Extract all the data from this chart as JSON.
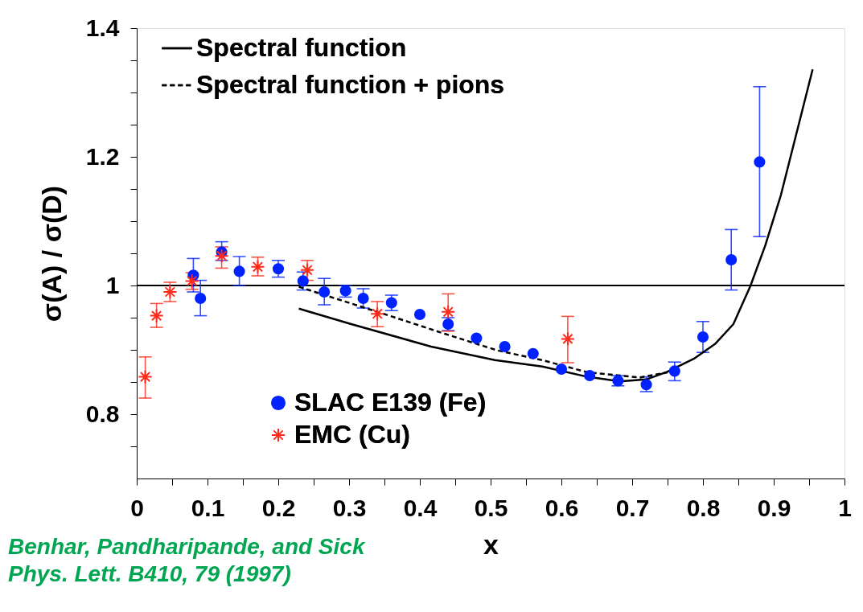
{
  "chart_data": {
    "type": "scatter",
    "xlabel": "x",
    "ylabel": "σ(A) / σ(D)",
    "xlim": [
      0,
      1
    ],
    "ylim": [
      0.7,
      1.4
    ],
    "xticks": [
      0,
      {
        "value": 0.05,
        "label": null
      },
      0.1,
      {
        "value": 0.15,
        "label": null
      },
      0.2,
      {
        "value": 0.25,
        "label": null
      },
      0.3,
      {
        "value": 0.35,
        "label": null
      },
      0.4,
      {
        "value": 0.45,
        "label": null
      },
      0.5,
      {
        "value": 0.55,
        "label": null
      },
      0.6,
      {
        "value": 0.65,
        "label": null
      },
      0.7,
      {
        "value": 0.75,
        "label": null
      },
      0.8,
      {
        "value": 0.85,
        "label": null
      },
      0.9,
      {
        "value": 0.95,
        "label": null
      },
      1
    ],
    "yticks": [
      {
        "value": 0.75,
        "label": null
      },
      0.8,
      {
        "value": 0.85,
        "label": null
      },
      {
        "value": 0.9,
        "label": null
      },
      {
        "value": 0.95,
        "label": null
      },
      1,
      {
        "value": 1.05,
        "label": null
      },
      {
        "value": 1.1,
        "label": null
      },
      {
        "value": 1.15,
        "label": null
      },
      1.2,
      {
        "value": 1.25,
        "label": null
      },
      {
        "value": 1.3,
        "label": null
      },
      {
        "value": 1.35,
        "label": null
      },
      1.4
    ],
    "grid": false,
    "legend": "top left",
    "ref_lines": [
      {
        "axis": "y",
        "value": 1,
        "color": "#000000",
        "line_style": "solid"
      }
    ],
    "annotations": [
      "Benhar, Pandharipande, and Sick",
      "Phys. Lett. B410, 79 (1997)"
    ],
    "series": [
      {
        "name": "Spectral function",
        "type": "line",
        "color": "#000000",
        "line_style": "solid",
        "marker": "none",
        "x": [
          0.229,
          0.303,
          0.416,
          0.506,
          0.573,
          0.637,
          0.682,
          0.72,
          0.75,
          0.787,
          0.817,
          0.843,
          0.867,
          0.888,
          0.91,
          0.955
        ],
        "values": [
          0.964,
          0.94,
          0.905,
          0.884,
          0.874,
          0.858,
          0.851,
          0.854,
          0.866,
          0.886,
          0.909,
          0.94,
          0.999,
          1.062,
          1.14,
          1.336
        ]
      },
      {
        "name": "Spectral function + pions",
        "type": "line",
        "color": "#000000",
        "line_style": "dashed",
        "marker": "none",
        "x": [
          0.229,
          0.303,
          0.36,
          0.435,
          0.51,
          0.573,
          0.637,
          0.711,
          0.75
        ],
        "values": [
          0.998,
          0.972,
          0.952,
          0.925,
          0.899,
          0.884,
          0.865,
          0.857,
          0.865
        ]
      },
      {
        "name": "SLAC E139 (Fe)",
        "color": "#0022ff",
        "marker": "circle",
        "x": [
          0.08,
          0.09,
          0.12,
          0.145,
          0.2,
          0.235,
          0.265,
          0.295,
          0.32,
          0.36,
          0.4,
          0.44,
          0.48,
          0.52,
          0.56,
          0.6,
          0.64,
          0.68,
          0.72,
          0.76,
          0.8,
          0.84,
          0.88
        ],
        "values": [
          1.016,
          0.98,
          1.052,
          1.022,
          1.026,
          1.007,
          0.99,
          0.992,
          0.98,
          0.973,
          0.955,
          0.94,
          0.918,
          0.905,
          0.894,
          0.87,
          0.86,
          0.852,
          0.846,
          0.867,
          0.92,
          1.04,
          1.192
        ],
        "errors": [
          [
            0.99,
            1.042
          ],
          [
            0.953,
            1.008
          ],
          [
            1.039,
            1.068
          ],
          [
            1.0,
            1.045
          ],
          [
            1.013,
            1.039
          ],
          [
            0.993,
            1.021
          ],
          [
            0.97,
            1.011
          ],
          [
            0.982,
            1.0
          ],
          [
            0.965,
            0.995
          ],
          [
            0.961,
            0.985
          ],
          null,
          [
            0.93,
            0.95
          ],
          null,
          null,
          null,
          null,
          null,
          [
            0.844,
            0.86
          ],
          [
            0.835,
            0.858
          ],
          [
            0.852,
            0.881
          ],
          [
            0.896,
            0.944
          ],
          [
            0.993,
            1.087
          ],
          [
            1.076,
            1.309
          ]
        ]
      },
      {
        "name": "EMC (Cu)",
        "color": "#ff2a1a",
        "marker": "cross",
        "x": [
          0.012,
          0.028,
          0.047,
          0.078,
          0.12,
          0.171,
          0.241,
          0.34,
          0.44,
          0.609
        ],
        "values": [
          0.858,
          0.953,
          0.99,
          1.007,
          1.046,
          1.029,
          1.024,
          0.956,
          0.959,
          0.917
        ],
        "errors": [
          [
            0.825,
            0.889
          ],
          [
            0.935,
            0.972
          ],
          [
            0.975,
            1.005
          ],
          [
            0.994,
            1.02
          ],
          [
            1.027,
            1.06
          ],
          [
            1.015,
            1.044
          ],
          [
            1.008,
            1.039
          ],
          [
            0.936,
            0.975
          ],
          [
            0.929,
            0.987
          ],
          [
            0.88,
            0.952
          ]
        ]
      }
    ]
  }
}
